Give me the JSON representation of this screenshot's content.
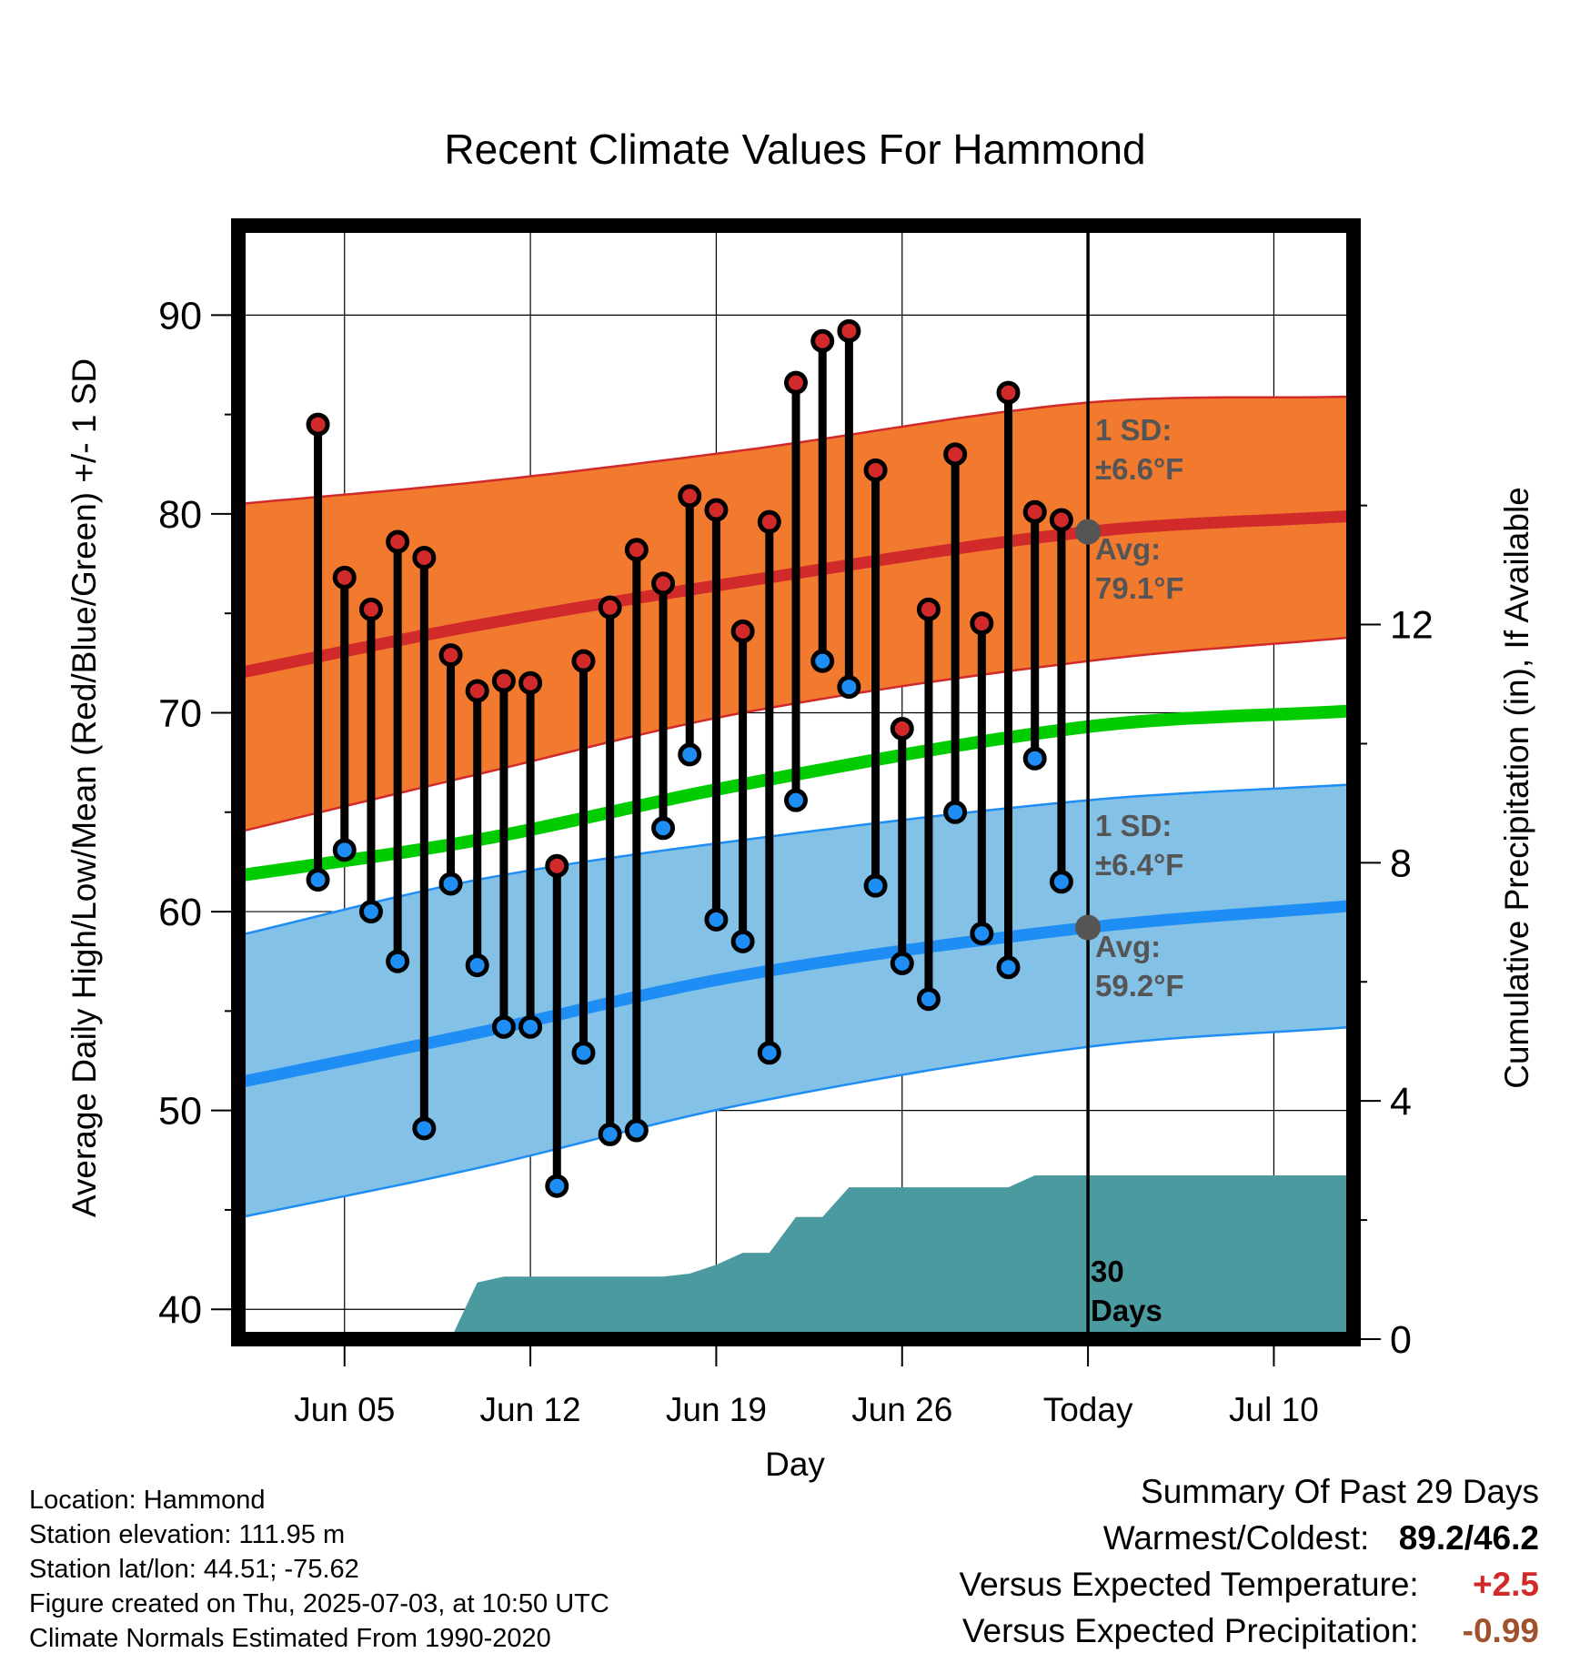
{
  "chart_data": {
    "type": "line",
    "title": "Recent Climate Values For Hammond",
    "xlabel": "Day",
    "ylabel_left": "Average Daily High/Low/Mean (Red/Blue/Green) +/- 1 SD",
    "ylabel_right": "Cumulative Precipitation (in), If Available",
    "ylim_left": [
      38.5,
      94.5
    ],
    "ylim_right": [
      0,
      18.7
    ],
    "x_range": [
      "2025-06-01",
      "2025-07-13"
    ],
    "x_ticks": [
      {
        "date": "2025-06-05",
        "label": "Jun 05"
      },
      {
        "date": "2025-06-12",
        "label": "Jun 12"
      },
      {
        "date": "2025-06-19",
        "label": "Jun 19"
      },
      {
        "date": "2025-06-26",
        "label": "Jun 26"
      },
      {
        "date": "2025-07-03",
        "label": "Today"
      },
      {
        "date": "2025-07-10",
        "label": "Jul 10"
      }
    ],
    "y_ticks_left": [
      40,
      50,
      60,
      70,
      80,
      90
    ],
    "y_ticks_right": [
      0,
      4,
      8,
      12
    ],
    "grid": true,
    "today": "2025-07-03",
    "days": [
      "2025-06-04",
      "2025-06-05",
      "2025-06-06",
      "2025-06-07",
      "2025-06-08",
      "2025-06-09",
      "2025-06-10",
      "2025-06-11",
      "2025-06-12",
      "2025-06-13",
      "2025-06-14",
      "2025-06-15",
      "2025-06-16",
      "2025-06-17",
      "2025-06-18",
      "2025-06-19",
      "2025-06-20",
      "2025-06-21",
      "2025-06-22",
      "2025-06-23",
      "2025-06-24",
      "2025-06-25",
      "2025-06-26",
      "2025-06-27",
      "2025-06-28",
      "2025-06-29",
      "2025-06-30",
      "2025-07-01",
      "2025-07-02"
    ],
    "highs": [
      84.5,
      76.8,
      75.2,
      78.6,
      77.8,
      72.9,
      71.1,
      71.6,
      71.5,
      62.3,
      72.6,
      75.3,
      78.2,
      76.5,
      80.9,
      80.2,
      74.1,
      79.6,
      86.6,
      88.7,
      89.2,
      82.2,
      69.2,
      75.2,
      83.0,
      74.5,
      86.1,
      80.1,
      79.7
    ],
    "lows": [
      61.6,
      63.1,
      60.0,
      57.5,
      49.1,
      61.4,
      57.3,
      54.2,
      54.2,
      46.2,
      52.9,
      48.8,
      49.0,
      64.2,
      67.9,
      59.6,
      58.5,
      52.9,
      65.6,
      72.6,
      71.3,
      61.3,
      57.4,
      55.6,
      65.0,
      58.9,
      57.2,
      67.7,
      61.5
    ],
    "normal_high": {
      "dates": [
        "2025-06-01",
        "2025-06-10",
        "2025-06-20",
        "2025-07-03",
        "2025-07-13"
      ],
      "avg": [
        72.0,
        74.4,
        76.6,
        79.1,
        79.9
      ],
      "upper": [
        80.5,
        81.6,
        83.2,
        85.6,
        85.9
      ],
      "lower": [
        64.0,
        66.9,
        70.0,
        72.6,
        73.8
      ]
    },
    "normal_mean": {
      "dates": [
        "2025-06-01",
        "2025-06-10",
        "2025-06-20",
        "2025-07-03",
        "2025-07-13"
      ],
      "avg": [
        61.8,
        63.6,
        66.4,
        69.3,
        70.1
      ]
    },
    "normal_low": {
      "dates": [
        "2025-06-01",
        "2025-06-10",
        "2025-06-20",
        "2025-07-03",
        "2025-07-13"
      ],
      "avg": [
        51.4,
        53.9,
        56.8,
        59.2,
        60.3
      ],
      "upper": [
        58.8,
        61.6,
        63.6,
        65.6,
        66.4
      ],
      "lower": [
        44.6,
        47.1,
        50.3,
        53.2,
        54.2
      ]
    },
    "precip": {
      "dates": [
        "2025-06-01",
        "2025-06-09",
        "2025-06-10",
        "2025-06-11",
        "2025-06-17",
        "2025-06-18",
        "2025-06-19",
        "2025-06-20",
        "2025-06-21",
        "2025-06-22",
        "2025-06-23",
        "2025-06-24",
        "2025-06-30",
        "2025-07-01",
        "2025-07-13"
      ],
      "values": [
        0.0,
        0.0,
        0.95,
        1.05,
        1.05,
        1.1,
        1.25,
        1.45,
        1.45,
        2.05,
        2.05,
        2.55,
        2.55,
        2.75,
        2.75
      ]
    },
    "annotations": {
      "high_sd": "1 SD:",
      "high_sd_value": "±6.6°F",
      "high_avg": "Avg:",
      "high_avg_value": "79.1°F",
      "low_sd": "1 SD:",
      "low_sd_value": "±6.4°F",
      "low_avg": "Avg:",
      "low_avg_value": "59.2°F",
      "days_count": "30",
      "days_word": "Days"
    },
    "colors": {
      "high_band": "#f27a2e",
      "high_line": "#d12a2a",
      "low_band": "#83c1e7",
      "low_line": "#1e8ef5",
      "mean_line": "#00cc00",
      "precip": "#4a9aa0",
      "high_dot": "#d22a2a",
      "low_dot": "#1e8ef5",
      "annotation": "#555555"
    }
  },
  "station_info": [
    "Location: Hammond",
    "Station elevation: 111.95 m",
    "Station lat/lon: 44.51; -75.62",
    "Figure created on Thu, 2025-07-03, at 10:50 UTC",
    "Climate Normals Estimated From 1990-2020"
  ],
  "summary": {
    "title": "Summary Of Past 29 Days",
    "warm_cold_label": "Warmest/Coldest:",
    "warm_cold_value": "89.2/46.2",
    "temp_label": "Versus Expected Temperature:",
    "temp_value": "+2.5",
    "temp_color": "#d12a2a",
    "precip_label": "Versus Expected Precipitation:",
    "precip_value": "-0.99",
    "precip_color": "#a0522d"
  }
}
